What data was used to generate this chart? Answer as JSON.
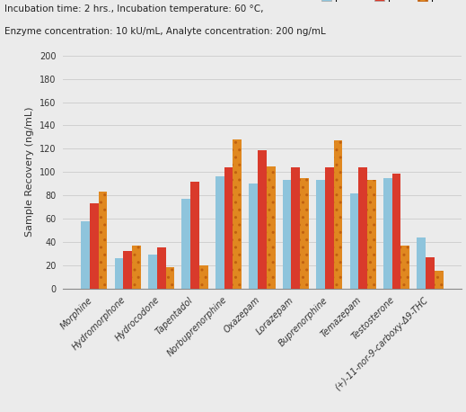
{
  "categories": [
    "Morphine",
    "Hydromorphone",
    "Hydrocodone",
    "Tapentadol",
    "Norbuprenorphine",
    "Oxazepam",
    "Lorazepam",
    "Buprenorphine",
    "Temazepam",
    "Testosterone",
    "(+)-11-nor-9-carboxy-Δ9-THC"
  ],
  "ph45": [
    58,
    26,
    29,
    77,
    96,
    90,
    93,
    93,
    82,
    95,
    44
  ],
  "ph5": [
    73,
    32,
    35,
    92,
    104,
    119,
    104,
    104,
    104,
    99,
    27
  ],
  "ph6": [
    83,
    37,
    18,
    20,
    128,
    105,
    95,
    127,
    93,
    37,
    15
  ],
  "color_ph45": "#8ec4dc",
  "color_ph5": "#d93a2b",
  "color_ph6": "#e08820",
  "ylabel": "Sample Recovery (ng/mL)",
  "ylim": [
    0,
    200
  ],
  "yticks": [
    0,
    20,
    40,
    60,
    80,
    100,
    120,
    140,
    160,
    180,
    200
  ],
  "subtitle1": "Incubation time: 2 hrs., Incubation temperature: 60 °C,",
  "subtitle2": "Enzyme concentration: 10 kU/mL, Analyte concentration: 200 ng/mL",
  "bg_color": "#ebebeb",
  "grid_color": "#d0d0d0",
  "bar_width": 0.26,
  "title_fontsize": 7.5,
  "axis_fontsize": 8,
  "tick_fontsize": 7,
  "legend_fontsize": 8
}
